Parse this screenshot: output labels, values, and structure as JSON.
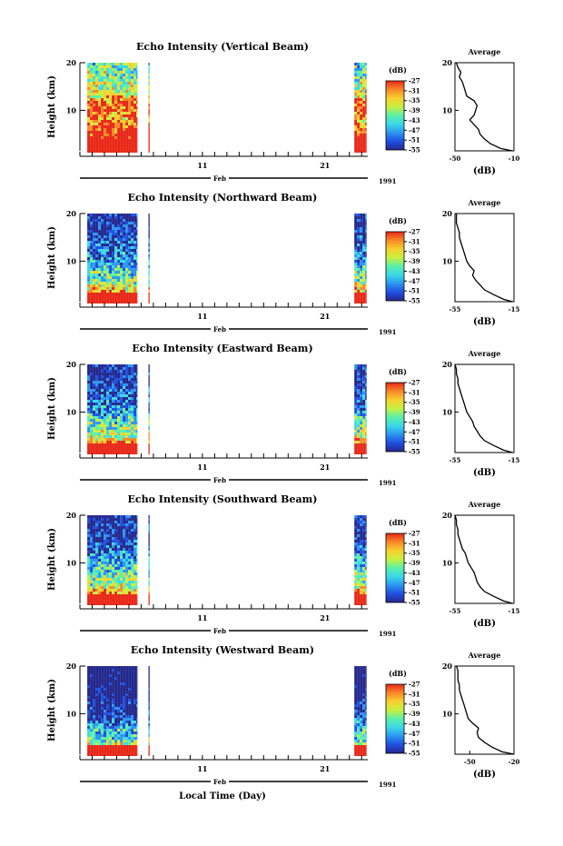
{
  "figure": {
    "xlabel": "Local Time (Day)",
    "month_label": "Feb",
    "year_label": "1991",
    "x_tick_labels": [
      "11",
      "21"
    ],
    "colorbar_unit": "(dB)",
    "colorbar_ticks": [
      -27,
      -31,
      -35,
      -39,
      -43,
      -47,
      -51,
      -55
    ],
    "profile_title": "Average",
    "profile_xlabel": "(dB)",
    "ylabel": "Height (km)",
    "y_tick_labels": [
      "20",
      "10"
    ],
    "colors": {
      "colormap": [
        "#24288c",
        "#1f4fe0",
        "#2c96f0",
        "#3cd8e8",
        "#5cf0a8",
        "#c8f040",
        "#f8d030",
        "#f88828",
        "#e82818"
      ],
      "line": "#000000",
      "background": "#ffffff"
    }
  },
  "chart_data": [
    {
      "type": "heatmap",
      "title": "Echo Intensity (Vertical Beam)",
      "ylabel": "Height (km)",
      "ylim": [
        1.5,
        20
      ],
      "xlim_day": [
        1,
        24.5
      ],
      "data_coverage_days": [
        [
          1.6,
          5.7
        ],
        [
          6.6,
          6.7
        ],
        [
          23.4,
          24.4
        ]
      ],
      "colorbar_range_db": [
        -55,
        -27
      ],
      "average_profile": {
        "title": "Average",
        "xlabel": "(dB)",
        "xlim": [
          -50,
          -10
        ],
        "x_tick_labels": [
          "-50",
          "-10"
        ],
        "height_km": [
          1.5,
          2,
          3,
          4,
          5,
          6,
          7,
          8,
          9,
          10,
          11,
          12,
          13,
          14,
          15,
          16,
          17,
          18,
          19,
          20
        ],
        "db": [
          -11,
          -19,
          -26,
          -30,
          -33,
          -34,
          -37,
          -40,
          -37,
          -36,
          -35,
          -37,
          -42,
          -43,
          -44,
          -45,
          -47,
          -46,
          -48,
          -49
        ]
      }
    },
    {
      "type": "heatmap",
      "title": "Echo Intensity (Northward Beam)",
      "ylabel": "Height (km)",
      "ylim": [
        1.5,
        20
      ],
      "xlim_day": [
        1,
        24.5
      ],
      "data_coverage_days": [
        [
          1.6,
          5.7
        ],
        [
          6.6,
          6.7
        ],
        [
          23.4,
          24.4
        ]
      ],
      "colorbar_range_db": [
        -55,
        -27
      ],
      "average_profile": {
        "title": "Average",
        "xlabel": "(dB)",
        "xlim": [
          -55,
          -15
        ],
        "x_tick_labels": [
          "-55",
          "-15"
        ],
        "height_km": [
          1.5,
          2,
          3,
          4,
          5,
          6,
          7,
          8,
          9,
          10,
          11,
          12,
          13,
          14,
          15,
          16,
          17,
          18,
          19,
          20
        ],
        "db": [
          -16,
          -22,
          -29,
          -35,
          -38,
          -41,
          -43,
          -42,
          -45,
          -47,
          -48,
          -49,
          -50,
          -51,
          -52,
          -52,
          -53,
          -54,
          -54,
          -54
        ]
      }
    },
    {
      "type": "heatmap",
      "title": "Echo Intensity (Eastward Beam)",
      "ylabel": "Height (km)",
      "ylim": [
        1.5,
        20
      ],
      "xlim_day": [
        1,
        24.5
      ],
      "data_coverage_days": [
        [
          1.6,
          5.7
        ],
        [
          6.6,
          6.7
        ],
        [
          23.4,
          24.4
        ]
      ],
      "colorbar_range_db": [
        -55,
        -27
      ],
      "average_profile": {
        "title": "Average",
        "xlabel": "(dB)",
        "xlim": [
          -55,
          -15
        ],
        "x_tick_labels": [
          "-55",
          "-15"
        ],
        "height_km": [
          1.5,
          2,
          3,
          4,
          5,
          6,
          7,
          8,
          9,
          10,
          11,
          12,
          13,
          14,
          15,
          16,
          17,
          18,
          19,
          20
        ],
        "db": [
          -16,
          -22,
          -29,
          -35,
          -38,
          -40,
          -42,
          -43,
          -45,
          -47,
          -48,
          -49,
          -50,
          -51,
          -52,
          -53,
          -53,
          -54,
          -54,
          -55
        ]
      }
    },
    {
      "type": "heatmap",
      "title": "Echo Intensity (Southward Beam)",
      "ylabel": "Height (km)",
      "ylim": [
        1.5,
        20
      ],
      "xlim_day": [
        1,
        24.5
      ],
      "data_coverage_days": [
        [
          1.6,
          5.7
        ],
        [
          6.6,
          6.7
        ],
        [
          23.4,
          24.4
        ]
      ],
      "colorbar_range_db": [
        -55,
        -27
      ],
      "average_profile": {
        "title": "Average",
        "xlabel": "(dB)",
        "xlim": [
          -55,
          -15
        ],
        "x_tick_labels": [
          "-55",
          "-15"
        ],
        "height_km": [
          1.5,
          2,
          3,
          4,
          5,
          6,
          7,
          8,
          9,
          10,
          11,
          12,
          13,
          14,
          15,
          16,
          17,
          18,
          19,
          20
        ],
        "db": [
          -16,
          -22,
          -29,
          -35,
          -38,
          -40,
          -41,
          -42,
          -44,
          -46,
          -47,
          -48,
          -50,
          -51,
          -52,
          -53,
          -53,
          -54,
          -54,
          -55
        ]
      }
    },
    {
      "type": "heatmap",
      "title": "Echo Intensity (Westward Beam)",
      "ylabel": "Height (km)",
      "ylim": [
        1.5,
        20
      ],
      "xlim_day": [
        1,
        24.5
      ],
      "data_coverage_days": [
        [
          1.6,
          5.7
        ],
        [
          6.6,
          6.7
        ],
        [
          23.4,
          24.4
        ]
      ],
      "colorbar_range_db": [
        -55,
        -27
      ],
      "average_profile": {
        "title": "Average",
        "xlabel": "(dB)",
        "xlim": [
          -60,
          -20
        ],
        "x_tick_labels": [
          "-50",
          "-20"
        ],
        "x_tick_values": [
          -50,
          -20
        ],
        "height_km": [
          1.5,
          2,
          3,
          4,
          5,
          6,
          7,
          8,
          9,
          10,
          11,
          12,
          13,
          14,
          15,
          16,
          17,
          18,
          19,
          20
        ],
        "db": [
          -20,
          -28,
          -35,
          -40,
          -44,
          -45,
          -44,
          -48,
          -51,
          -52,
          -53,
          -54,
          -55,
          -56,
          -57,
          -57,
          -58,
          -58,
          -58,
          -59
        ]
      }
    }
  ]
}
